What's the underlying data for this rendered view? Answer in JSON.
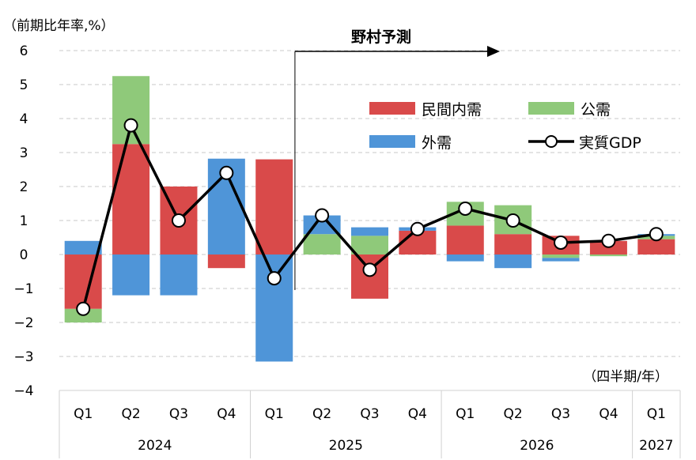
{
  "chart_data": {
    "type": "bar",
    "stacked": true,
    "unit_label": "（前期比年率,%）",
    "x_unit_label": "（四半期/年）",
    "forecast_label": "野村予測",
    "ylim": [
      -4,
      6
    ],
    "yticks": [
      6,
      5,
      4,
      3,
      2,
      1,
      0,
      -1,
      -2,
      -3,
      -4
    ],
    "ytick_labels": [
      "6",
      "5",
      "4",
      "3",
      "2",
      "1",
      "0",
      "−1",
      "−2",
      "−3",
      "−4"
    ],
    "grid": true,
    "legend_position": "upper-right",
    "categories": [
      "Q1",
      "Q2",
      "Q3",
      "Q4",
      "Q1",
      "Q2",
      "Q3",
      "Q4",
      "Q1",
      "Q2",
      "Q3",
      "Q4",
      "Q1"
    ],
    "years": [
      {
        "label": "2024",
        "count": 4
      },
      {
        "label": "2025",
        "count": 4
      },
      {
        "label": "2026",
        "count": 4
      },
      {
        "label": "2027",
        "count": 1
      }
    ],
    "forecast_start_index": 5,
    "series": [
      {
        "name": "民間内需",
        "type": "bar",
        "color": "#d94a4a",
        "values": [
          -1.6,
          3.25,
          2.0,
          -0.4,
          2.8,
          0.0,
          -1.3,
          0.7,
          0.85,
          0.6,
          0.55,
          0.4,
          0.45
        ]
      },
      {
        "name": "公需",
        "type": "bar",
        "color": "#8fc97a",
        "values": [
          -0.4,
          2.0,
          0.0,
          0.0,
          0.0,
          0.6,
          0.55,
          0.0,
          0.7,
          0.85,
          -0.1,
          -0.05,
          0.1
        ]
      },
      {
        "name": "外需",
        "type": "bar",
        "color": "#4f95d8",
        "values": [
          0.4,
          -1.2,
          -1.2,
          2.82,
          -3.15,
          0.55,
          0.25,
          0.1,
          -0.2,
          -0.4,
          -0.1,
          0.0,
          0.05
        ]
      },
      {
        "name": "実質GDP",
        "type": "line",
        "color": "#000000",
        "values": [
          -1.6,
          3.8,
          1.0,
          2.4,
          -0.7,
          1.15,
          -0.45,
          0.75,
          1.35,
          1.0,
          0.35,
          0.4,
          0.6
        ]
      }
    ]
  }
}
